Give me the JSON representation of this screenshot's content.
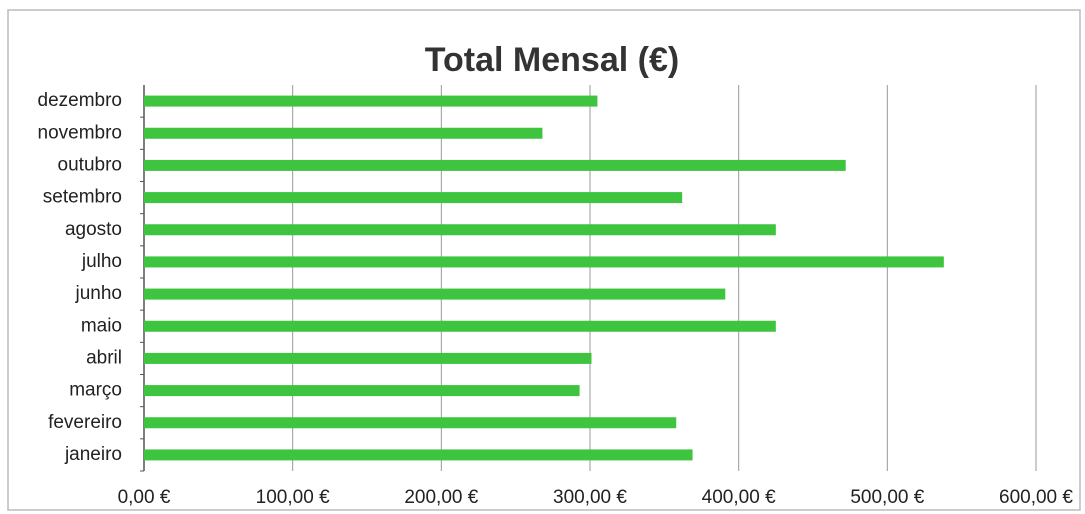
{
  "chart_data": {
    "type": "bar",
    "orientation": "horizontal",
    "title": "Total Mensal (€)",
    "categories": [
      "janeiro",
      "fevereiro",
      "março",
      "abril",
      "maio",
      "junho",
      "julho",
      "agosto",
      "setembro",
      "outubro",
      "novembro",
      "dezembro"
    ],
    "values": [
      369,
      358,
      293,
      301,
      425,
      391,
      538,
      425,
      362,
      472,
      268,
      305
    ],
    "color": "#3fc43f",
    "xlim": [
      0,
      600
    ],
    "xticks": [
      {
        "value": 0,
        "label": "0,00 €"
      },
      {
        "value": 100,
        "label": "100,00 €"
      },
      {
        "value": 200,
        "label": "200,00 €"
      },
      {
        "value": 300,
        "label": "300,00 €"
      },
      {
        "value": 400,
        "label": "400,00 €"
      },
      {
        "value": 500,
        "label": "500,00 €"
      },
      {
        "value": 600,
        "label": "600,00 €"
      }
    ],
    "grid": true
  }
}
